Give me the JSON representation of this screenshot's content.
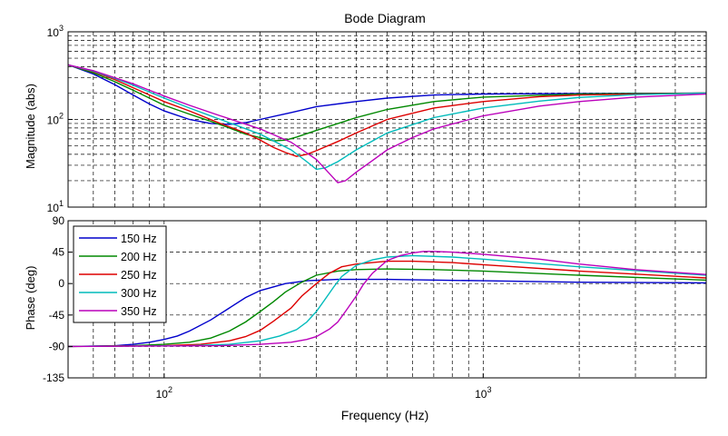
{
  "chart_data": [
    {
      "type": "line",
      "title": "Bode Diagram",
      "ylabel": "Magnitude (abs)",
      "xlabel": "",
      "xscale": "log",
      "yscale": "log",
      "xlim": [
        50,
        5000
      ],
      "ylim": [
        10,
        1000
      ],
      "grid": "on (dashed, major and minor)",
      "x_ticks": [
        {
          "value": 100,
          "label": "10",
          "exp": "2"
        },
        {
          "value": 1000,
          "label": "10",
          "exp": "3"
        }
      ],
      "y_ticks": [
        {
          "value": 10,
          "label": "10",
          "exp": "1"
        },
        {
          "value": 100,
          "label": "10",
          "exp": "2"
        },
        {
          "value": 1000,
          "label": "10",
          "exp": "3"
        }
      ],
      "series": [
        {
          "name": "150 Hz",
          "color": "#0000cc",
          "points": [
            [
              50,
              420
            ],
            [
              60,
              330
            ],
            [
              70,
              250
            ],
            [
              80,
              190
            ],
            [
              90,
              150
            ],
            [
              100,
              125
            ],
            [
              120,
              100
            ],
            [
              140,
              90
            ],
            [
              160,
              88
            ],
            [
              180,
              92
            ],
            [
              200,
              100
            ],
            [
              250,
              120
            ],
            [
              300,
              140
            ],
            [
              400,
              160
            ],
            [
              500,
              175
            ],
            [
              700,
              190
            ],
            [
              1000,
              195
            ],
            [
              2000,
              198
            ],
            [
              5000,
              200
            ]
          ]
        },
        {
          "name": "200 Hz",
          "color": "#008800",
          "points": [
            [
              50,
              420
            ],
            [
              60,
              340
            ],
            [
              70,
              270
            ],
            [
              80,
              215
            ],
            [
              90,
              175
            ],
            [
              100,
              145
            ],
            [
              120,
              115
            ],
            [
              140,
              95
            ],
            [
              160,
              80
            ],
            [
              180,
              68
            ],
            [
              200,
              62
            ],
            [
              220,
              57
            ],
            [
              240,
              58
            ],
            [
              260,
              63
            ],
            [
              300,
              75
            ],
            [
              400,
              105
            ],
            [
              500,
              130
            ],
            [
              700,
              160
            ],
            [
              1000,
              180
            ],
            [
              2000,
              195
            ],
            [
              5000,
              200
            ]
          ]
        },
        {
          "name": "250 Hz",
          "color": "#dd0000",
          "points": [
            [
              50,
              420
            ],
            [
              60,
              350
            ],
            [
              70,
              285
            ],
            [
              80,
              230
            ],
            [
              90,
              190
            ],
            [
              100,
              160
            ],
            [
              120,
              125
            ],
            [
              150,
              90
            ],
            [
              180,
              70
            ],
            [
              200,
              58
            ],
            [
              220,
              48
            ],
            [
              240,
              42
            ],
            [
              260,
              38
            ],
            [
              280,
              40
            ],
            [
              300,
              44
            ],
            [
              350,
              56
            ],
            [
              400,
              70
            ],
            [
              500,
              100
            ],
            [
              700,
              135
            ],
            [
              1000,
              160
            ],
            [
              1500,
              182
            ],
            [
              2000,
              190
            ],
            [
              5000,
              200
            ]
          ]
        },
        {
          "name": "300 Hz",
          "color": "#00bbbb",
          "points": [
            [
              50,
              420
            ],
            [
              60,
              355
            ],
            [
              70,
              295
            ],
            [
              80,
              245
            ],
            [
              90,
              205
            ],
            [
              100,
              175
            ],
            [
              120,
              135
            ],
            [
              150,
              100
            ],
            [
              200,
              68
            ],
            [
              250,
              45
            ],
            [
              280,
              33
            ],
            [
              300,
              27
            ],
            [
              320,
              28
            ],
            [
              350,
              33
            ],
            [
              400,
              45
            ],
            [
              500,
              70
            ],
            [
              700,
              105
            ],
            [
              1000,
              135
            ],
            [
              1500,
              162
            ],
            [
              2000,
              178
            ],
            [
              3000,
              192
            ],
            [
              5000,
              200
            ]
          ]
        },
        {
          "name": "350 Hz",
          "color": "#bb00bb",
          "points": [
            [
              50,
              420
            ],
            [
              60,
              360
            ],
            [
              70,
              300
            ],
            [
              80,
              255
            ],
            [
              90,
              215
            ],
            [
              100,
              185
            ],
            [
              120,
              145
            ],
            [
              150,
              110
            ],
            [
              200,
              78
            ],
            [
              250,
              55
            ],
            [
              300,
              35
            ],
            [
              330,
              24
            ],
            [
              350,
              19
            ],
            [
              370,
              20
            ],
            [
              400,
              25
            ],
            [
              450,
              34
            ],
            [
              500,
              45
            ],
            [
              600,
              62
            ],
            [
              700,
              78
            ],
            [
              1000,
              110
            ],
            [
              1500,
              142
            ],
            [
              2000,
              160
            ],
            [
              3000,
              180
            ],
            [
              5000,
              195
            ]
          ]
        }
      ]
    },
    {
      "type": "line",
      "title": "",
      "ylabel": "Phase (deg)",
      "xlabel": "Frequency (Hz)",
      "xscale": "log",
      "xlim": [
        50,
        5000
      ],
      "ylim": [
        -135,
        90
      ],
      "grid": "on (dashed, major and minor)",
      "legend_position": "top-left",
      "x_ticks": [
        {
          "value": 100,
          "label": "10",
          "exp": "2"
        },
        {
          "value": 1000,
          "label": "10",
          "exp": "3"
        }
      ],
      "y_ticks": [
        {
          "value": 90,
          "label": "90"
        },
        {
          "value": 45,
          "label": "45"
        },
        {
          "value": 0,
          "label": "0"
        },
        {
          "value": -45,
          "label": "-45"
        },
        {
          "value": -90,
          "label": "-90"
        },
        {
          "value": -135,
          "label": "-135"
        }
      ],
      "series": [
        {
          "name": "150 Hz",
          "color": "#0000cc",
          "points": [
            [
              50,
              -90
            ],
            [
              70,
              -89
            ],
            [
              80,
              -87
            ],
            [
              90,
              -84
            ],
            [
              100,
              -80
            ],
            [
              110,
              -75
            ],
            [
              120,
              -68
            ],
            [
              140,
              -52
            ],
            [
              160,
              -35
            ],
            [
              180,
              -20
            ],
            [
              200,
              -10
            ],
            [
              240,
              0
            ],
            [
              280,
              4
            ],
            [
              350,
              6
            ],
            [
              500,
              6
            ],
            [
              1000,
              4
            ],
            [
              2000,
              2
            ],
            [
              5000,
              1
            ]
          ]
        },
        {
          "name": "200 Hz",
          "color": "#008800",
          "points": [
            [
              50,
              -90
            ],
            [
              80,
              -89
            ],
            [
              100,
              -87
            ],
            [
              120,
              -84
            ],
            [
              140,
              -78
            ],
            [
              160,
              -68
            ],
            [
              180,
              -55
            ],
            [
              200,
              -40
            ],
            [
              220,
              -26
            ],
            [
              240,
              -12
            ],
            [
              270,
              2
            ],
            [
              300,
              12
            ],
            [
              350,
              18
            ],
            [
              400,
              20
            ],
            [
              500,
              21
            ],
            [
              700,
              20
            ],
            [
              1000,
              18
            ],
            [
              2000,
              12
            ],
            [
              5000,
              5
            ]
          ]
        },
        {
          "name": "250 Hz",
          "color": "#dd0000",
          "points": [
            [
              50,
              -90
            ],
            [
              100,
              -89
            ],
            [
              130,
              -87
            ],
            [
              160,
              -82
            ],
            [
              180,
              -76
            ],
            [
              200,
              -67
            ],
            [
              220,
              -54
            ],
            [
              250,
              -35
            ],
            [
              270,
              -18
            ],
            [
              300,
              0
            ],
            [
              330,
              15
            ],
            [
              360,
              24
            ],
            [
              400,
              28
            ],
            [
              500,
              32
            ],
            [
              600,
              32
            ],
            [
              800,
              30
            ],
            [
              1000,
              27
            ],
            [
              2000,
              18
            ],
            [
              5000,
              8
            ]
          ]
        },
        {
          "name": "300 Hz",
          "color": "#00bbbb",
          "points": [
            [
              50,
              -90
            ],
            [
              120,
              -89
            ],
            [
              160,
              -87
            ],
            [
              200,
              -82
            ],
            [
              230,
              -75
            ],
            [
              260,
              -66
            ],
            [
              280,
              -55
            ],
            [
              300,
              -40
            ],
            [
              320,
              -22
            ],
            [
              340,
              -5
            ],
            [
              360,
              10
            ],
            [
              400,
              26
            ],
            [
              450,
              34
            ],
            [
              500,
              38
            ],
            [
              600,
              40
            ],
            [
              800,
              38
            ],
            [
              1000,
              35
            ],
            [
              2000,
              24
            ],
            [
              5000,
              12
            ]
          ]
        },
        {
          "name": "350 Hz",
          "color": "#bb00bb",
          "points": [
            [
              50,
              -90
            ],
            [
              150,
              -89
            ],
            [
              200,
              -87
            ],
            [
              250,
              -84
            ],
            [
              280,
              -80
            ],
            [
              300,
              -76
            ],
            [
              330,
              -65
            ],
            [
              350,
              -55
            ],
            [
              370,
              -40
            ],
            [
              400,
              -18
            ],
            [
              420,
              -2
            ],
            [
              450,
              15
            ],
            [
              500,
              33
            ],
            [
              550,
              40
            ],
            [
              600,
              44
            ],
            [
              650,
              46
            ],
            [
              700,
              46
            ],
            [
              800,
              45
            ],
            [
              1000,
              42
            ],
            [
              1500,
              35
            ],
            [
              2000,
              28
            ],
            [
              3000,
              20
            ],
            [
              5000,
              13
            ]
          ]
        }
      ]
    }
  ]
}
